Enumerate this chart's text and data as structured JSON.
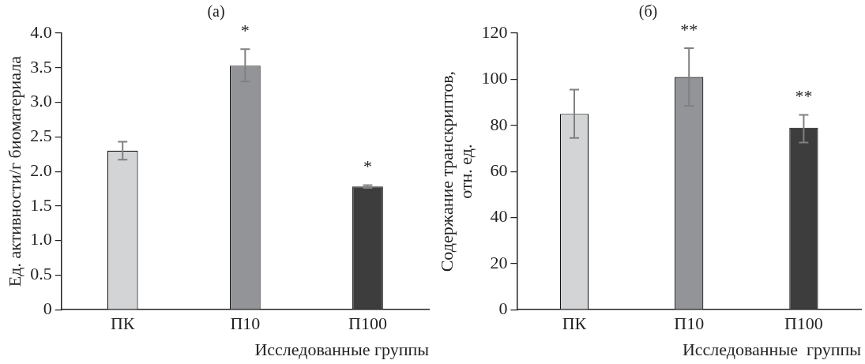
{
  "chart_data": [
    {
      "type": "bar",
      "title": "(a)",
      "xlabel": "Исследованные группы",
      "ylabel": "Ед. активности/г биоматериала",
      "categories": [
        "ПК",
        "П10",
        "П100"
      ],
      "values": [
        2.3,
        3.53,
        1.78
      ],
      "colors": [
        "#d3d4d6",
        "#939498",
        "#3d3d3d"
      ],
      "errors": [
        [
          2.17,
          2.43
        ],
        [
          3.3,
          3.77
        ],
        [
          1.76,
          1.8
        ]
      ],
      "ylim": [
        0,
        4
      ],
      "yticks": [
        0,
        {
          "value": 0.5,
          "label": "0.5"
        },
        {
          "value": 1,
          "label": "1.0"
        },
        {
          "value": 1.5,
          "label": "1.5"
        },
        {
          "value": 2,
          "label": "2.0"
        },
        {
          "value": 2.5,
          "label": "2.5"
        },
        {
          "value": 3,
          "label": "3.0"
        },
        {
          "value": 3.5,
          "label": "3.5"
        },
        {
          "value": 4,
          "label": "4.0"
        }
      ],
      "annotations": [
        {
          "text": "*",
          "x": "П10",
          "y": 3.77
        },
        {
          "text": "*",
          "x": "П100",
          "y": 1.8
        }
      ],
      "grid": false,
      "legend": false
    },
    {
      "type": "bar",
      "title": "(б)",
      "xlabel": "Исследованные  группы",
      "ylabel": "Содержание транскриптов,\nотн. ед.",
      "categories": [
        "ПК",
        "П10",
        "П100"
      ],
      "values": [
        85,
        101,
        79
      ],
      "colors": [
        "#d3d4d6",
        "#939498",
        "#3d3d3d"
      ],
      "errors": [
        [
          74.5,
          95.5
        ],
        [
          88.5,
          113.5
        ],
        [
          72.5,
          84.5
        ]
      ],
      "ylim": [
        0,
        120
      ],
      "yticks": [
        0,
        20,
        40,
        60,
        80,
        100,
        120
      ],
      "annotations": [
        {
          "text": "**",
          "x": "П10",
          "y": 113.5
        },
        {
          "text": "**",
          "x": "П100",
          "y": 84.5
        }
      ],
      "grid": false,
      "legend": false
    }
  ]
}
